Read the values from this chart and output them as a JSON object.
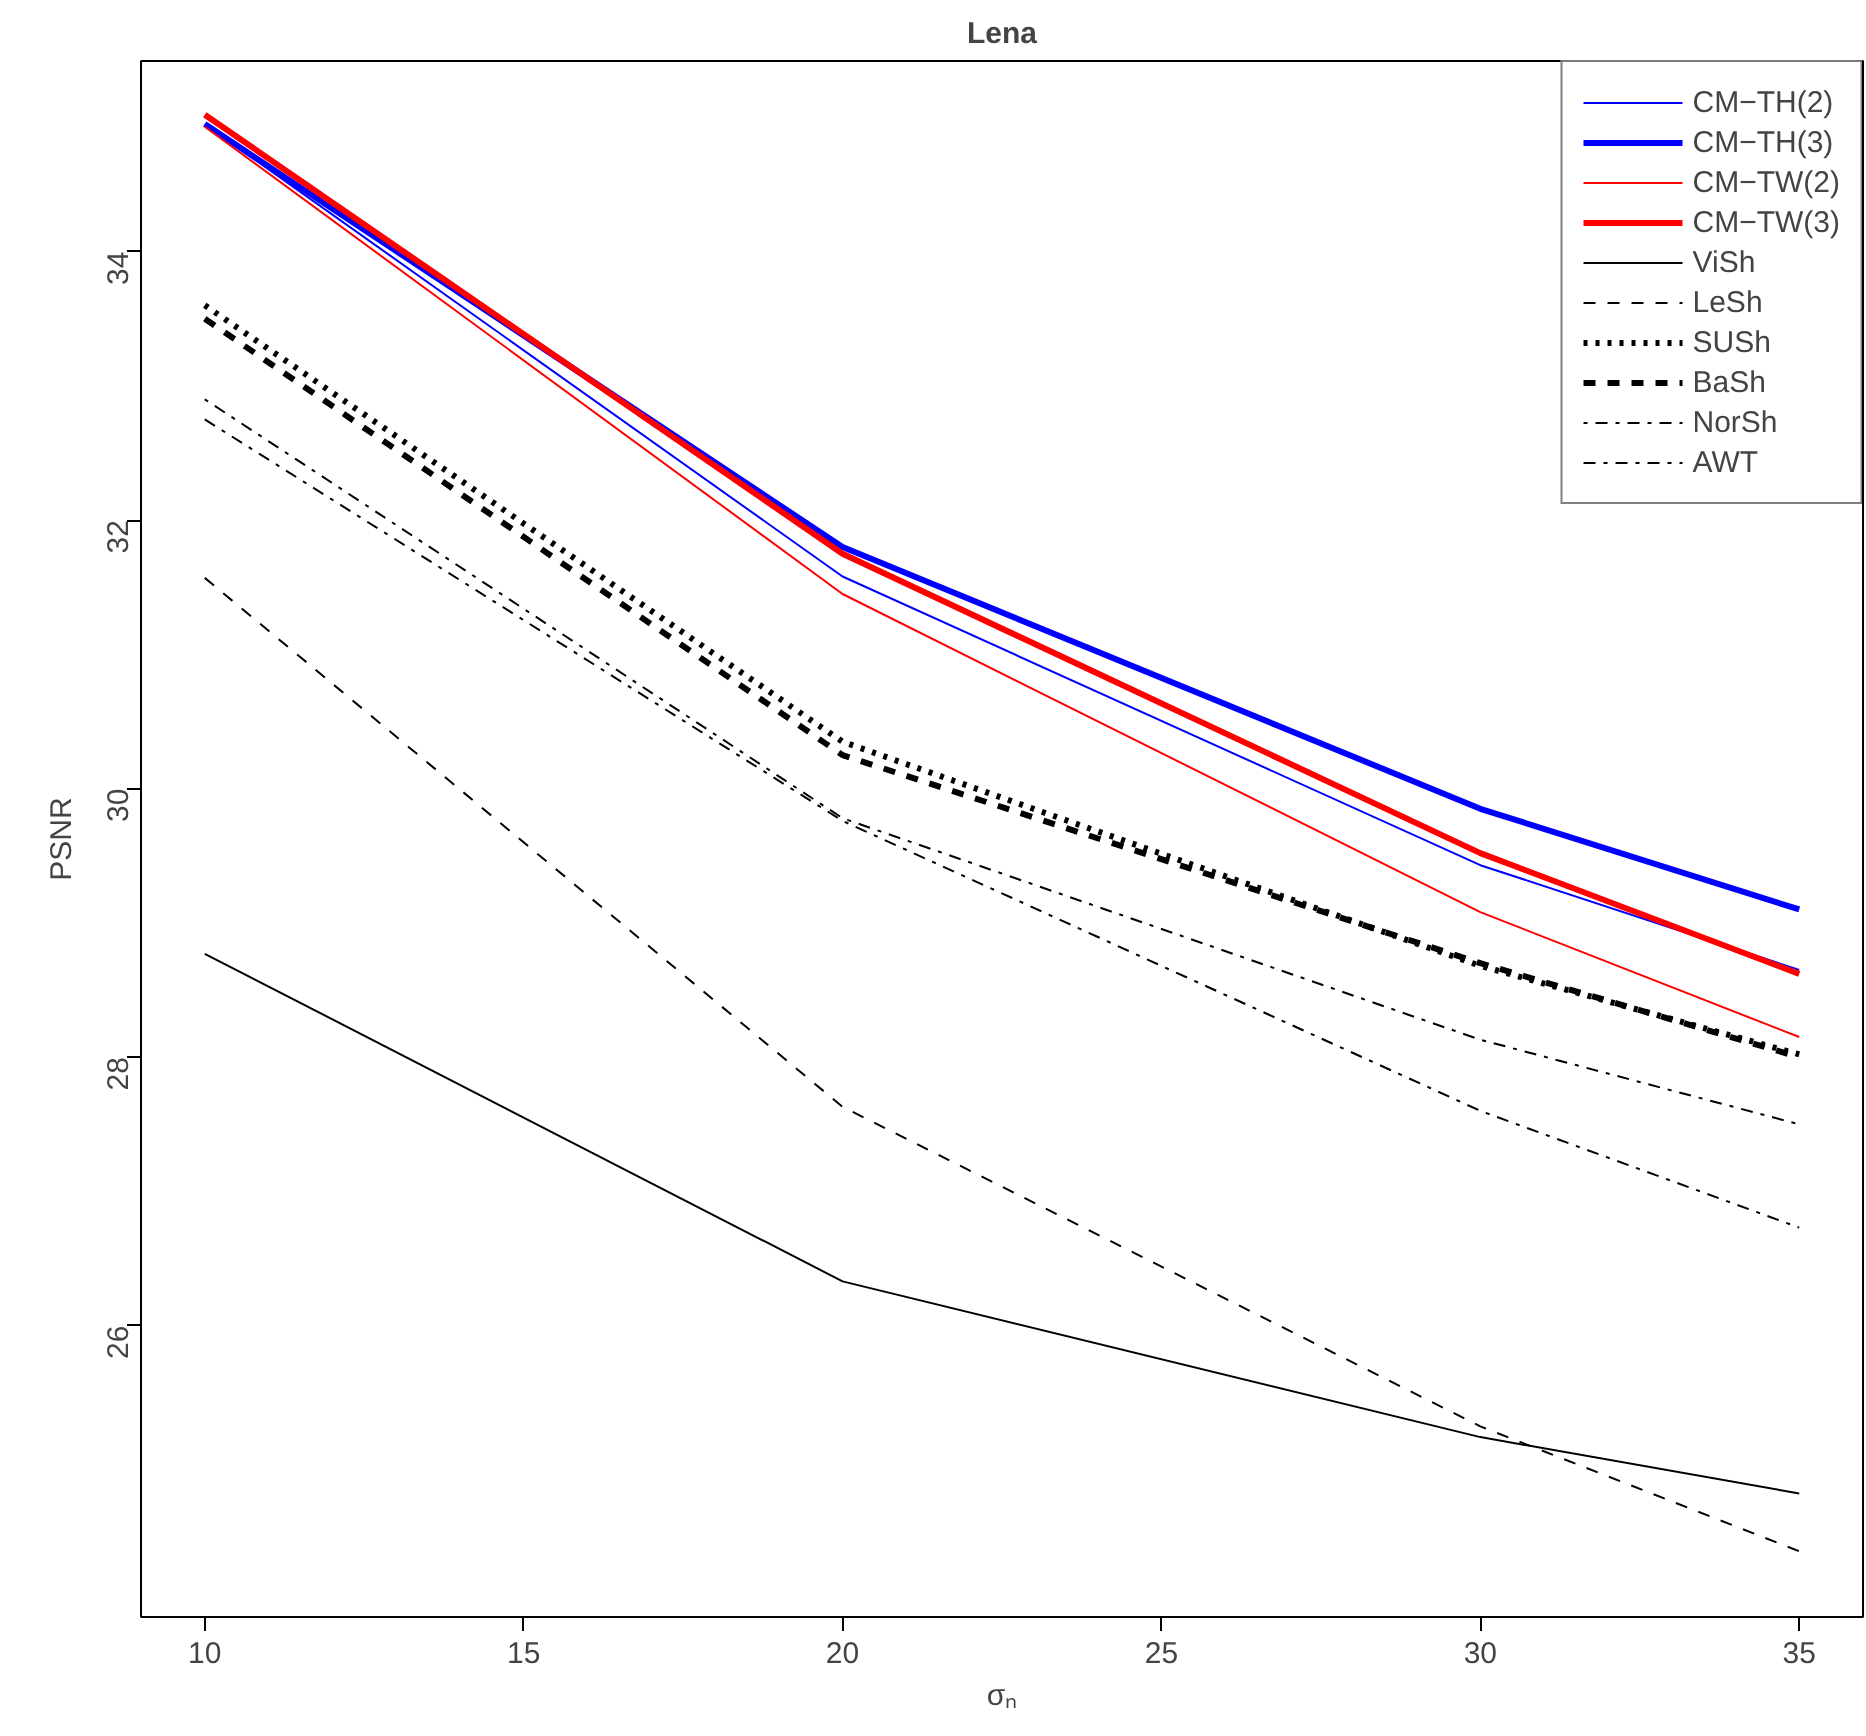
{
  "chart_data": {
    "type": "line",
    "title": "Lena",
    "xlabel": "σₙ",
    "ylabel": "PSNR",
    "x": [
      10,
      20,
      30,
      35
    ],
    "series": [
      {
        "name": "CM−TH(2)",
        "color": "#0000ff",
        "line_style": "solid",
        "values": [
          34.95,
          31.58,
          29.43,
          28.65
        ]
      },
      {
        "name": "CM−TH(3)",
        "color": "#0000ff",
        "line_style": "solid",
        "values": [
          34.95,
          31.8,
          29.85,
          29.1
        ]
      },
      {
        "name": "CM−TW(2)",
        "color": "#ff0000",
        "line_style": "solid",
        "values": [
          34.93,
          31.45,
          29.08,
          28.15
        ]
      },
      {
        "name": "CM−TW(3)",
        "color": "#ff0000",
        "line_style": "solid",
        "values": [
          35.02,
          31.75,
          29.52,
          28.62
        ]
      },
      {
        "name": "ViSh",
        "color": "#000000",
        "line_style": "solid",
        "values": [
          28.77,
          26.33,
          25.17,
          24.75
        ]
      },
      {
        "name": "LeSh",
        "color": "#000000",
        "line_style": "dashed",
        "values": [
          31.57,
          27.63,
          25.25,
          24.32
        ]
      },
      {
        "name": "SUSh",
        "color": "#000000",
        "line_style": "dotted",
        "values": [
          33.6,
          30.35,
          28.68,
          28.02
        ]
      },
      {
        "name": "BaSh",
        "color": "#000000",
        "line_style": "dashed",
        "values": [
          33.5,
          30.25,
          28.7,
          28.0
        ]
      },
      {
        "name": "NorSh",
        "color": "#000000",
        "line_style": "dotdash",
        "values": [
          32.9,
          29.78,
          28.13,
          27.5
        ]
      },
      {
        "name": "AWT",
        "color": "#000000",
        "line_style": "dashdot",
        "values": [
          32.75,
          29.76,
          27.6,
          26.73
        ]
      }
    ],
    "xlim": [
      9,
      36
    ],
    "ylim": [
      23.83,
      35.42
    ],
    "xticks": [
      10,
      15,
      20,
      25,
      30,
      35
    ],
    "yticks": [
      26,
      28,
      30,
      32,
      34
    ],
    "grid": false,
    "legend": "top right",
    "marker": "none"
  }
}
